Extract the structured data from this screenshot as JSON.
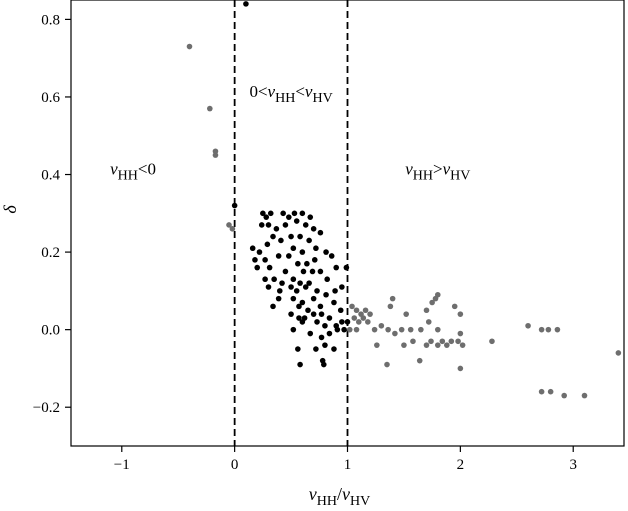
{
  "chart_data": {
    "type": "scatter",
    "title": "",
    "xlabel": "νHH/νHV",
    "ylabel": "δ",
    "xlim": [
      -1.45,
      3.45
    ],
    "ylim": [
      -0.3,
      0.85
    ],
    "xticks": [
      -1,
      0,
      1,
      2,
      3
    ],
    "xtick_labels": [
      "−1",
      "0",
      "1",
      "2",
      "3"
    ],
    "yticks": [
      -0.2,
      0.0,
      0.2,
      0.4,
      0.6,
      0.8
    ],
    "ytick_labels": [
      "−0.2",
      "0.0",
      "0.2",
      "0.4",
      "0.6",
      "0.8"
    ],
    "grid": false,
    "vlines": [
      0,
      1
    ],
    "annotations": [
      {
        "text": "νHH<0",
        "x": -0.9,
        "y": 0.4
      },
      {
        "text": "0<νHH<νHV",
        "x": 0.5,
        "y": 0.6
      },
      {
        "text": "νHH>νHV",
        "x": 1.8,
        "y": 0.4
      }
    ],
    "series": [
      {
        "color": "#000000",
        "points": [
          [
            0.1,
            0.84
          ],
          [
            0.0,
            0.32
          ],
          [
            0.25,
            0.3
          ],
          [
            0.28,
            0.29
          ],
          [
            0.32,
            0.3
          ],
          [
            0.43,
            0.3
          ],
          [
            0.48,
            0.29
          ],
          [
            0.53,
            0.3
          ],
          [
            0.6,
            0.3
          ],
          [
            0.67,
            0.29
          ],
          [
            0.24,
            0.27
          ],
          [
            0.3,
            0.27
          ],
          [
            0.37,
            0.26
          ],
          [
            0.45,
            0.27
          ],
          [
            0.55,
            0.28
          ],
          [
            0.63,
            0.27
          ],
          [
            0.7,
            0.26
          ],
          [
            0.76,
            0.25
          ],
          [
            0.16,
            0.21
          ],
          [
            0.22,
            0.2
          ],
          [
            0.34,
            0.24
          ],
          [
            0.41,
            0.23
          ],
          [
            0.5,
            0.24
          ],
          [
            0.58,
            0.24
          ],
          [
            0.66,
            0.23
          ],
          [
            0.72,
            0.21
          ],
          [
            0.29,
            0.22
          ],
          [
            0.52,
            0.21
          ],
          [
            0.6,
            0.2
          ],
          [
            0.81,
            0.2
          ],
          [
            0.18,
            0.18
          ],
          [
            0.27,
            0.18
          ],
          [
            0.39,
            0.19
          ],
          [
            0.48,
            0.19
          ],
          [
            0.56,
            0.17
          ],
          [
            0.64,
            0.17
          ],
          [
            0.71,
            0.18
          ],
          [
            0.86,
            0.19
          ],
          [
            0.2,
            0.16
          ],
          [
            0.31,
            0.16
          ],
          [
            0.45,
            0.15
          ],
          [
            0.61,
            0.15
          ],
          [
            0.69,
            0.15
          ],
          [
            0.76,
            0.15
          ],
          [
            0.9,
            0.16
          ],
          [
            0.99,
            0.16
          ],
          [
            0.27,
            0.13
          ],
          [
            0.35,
            0.13
          ],
          [
            0.42,
            0.12
          ],
          [
            0.52,
            0.13
          ],
          [
            0.58,
            0.12
          ],
          [
            0.66,
            0.12
          ],
          [
            0.82,
            0.13
          ],
          [
            0.3,
            0.11
          ],
          [
            0.4,
            0.1
          ],
          [
            0.5,
            0.11
          ],
          [
            0.55,
            0.1
          ],
          [
            0.63,
            0.11
          ],
          [
            0.73,
            0.1
          ],
          [
            0.81,
            0.09
          ],
          [
            0.89,
            0.1
          ],
          [
            0.95,
            0.11
          ],
          [
            0.39,
            0.08
          ],
          [
            0.52,
            0.08
          ],
          [
            0.6,
            0.07
          ],
          [
            0.7,
            0.08
          ],
          [
            0.88,
            0.07
          ],
          [
            0.34,
            0.06
          ],
          [
            0.57,
            0.06
          ],
          [
            0.65,
            0.05
          ],
          [
            0.76,
            0.06
          ],
          [
            0.94,
            0.05
          ],
          [
            0.5,
            0.04
          ],
          [
            0.57,
            0.03
          ],
          [
            0.62,
            0.03
          ],
          [
            0.7,
            0.04
          ],
          [
            0.77,
            0.04
          ],
          [
            0.84,
            0.03
          ],
          [
            0.6,
            0.02
          ],
          [
            0.73,
            0.02
          ],
          [
            0.8,
            0.01
          ],
          [
            0.9,
            0.01
          ],
          [
            0.95,
            0.02
          ],
          [
            1.0,
            0.02
          ],
          [
            0.52,
            0.0
          ],
          [
            0.67,
            -0.01
          ],
          [
            0.77,
            -0.02
          ],
          [
            0.84,
            -0.01
          ],
          [
            0.91,
            0.0
          ],
          [
            0.97,
            0.0
          ],
          [
            0.56,
            -0.05
          ],
          [
            0.72,
            -0.05
          ],
          [
            0.8,
            -0.04
          ],
          [
            0.88,
            -0.05
          ],
          [
            0.58,
            -0.09
          ],
          [
            0.78,
            -0.08
          ],
          [
            0.79,
            -0.09
          ]
        ]
      },
      {
        "color": "#6e6e6e",
        "points": [
          [
            -0.4,
            0.73
          ],
          [
            -0.22,
            0.57
          ],
          [
            -0.17,
            0.46
          ],
          [
            -0.17,
            0.45
          ],
          [
            -0.05,
            0.27
          ],
          [
            -0.02,
            0.26
          ],
          [
            1.04,
            0.06
          ],
          [
            1.08,
            0.05
          ],
          [
            1.12,
            0.04
          ],
          [
            1.16,
            0.05
          ],
          [
            1.2,
            0.04
          ],
          [
            1.06,
            0.03
          ],
          [
            1.1,
            0.02
          ],
          [
            1.14,
            0.03
          ],
          [
            1.02,
            0.0
          ],
          [
            1.08,
            0.0
          ],
          [
            1.18,
            0.02
          ],
          [
            1.24,
            0.0
          ],
          [
            1.3,
            0.01
          ],
          [
            1.38,
            0.06
          ],
          [
            1.4,
            0.08
          ],
          [
            1.36,
            0.0
          ],
          [
            1.42,
            -0.01
          ],
          [
            1.48,
            0.0
          ],
          [
            1.52,
            0.04
          ],
          [
            1.56,
            0.0
          ],
          [
            1.58,
            -0.03
          ],
          [
            1.65,
            0.0
          ],
          [
            1.7,
            0.05
          ],
          [
            1.72,
            0.02
          ],
          [
            1.75,
            0.07
          ],
          [
            1.78,
            0.08
          ],
          [
            1.8,
            0.09
          ],
          [
            1.8,
            0.0
          ],
          [
            1.84,
            -0.03
          ],
          [
            1.88,
            -0.04
          ],
          [
            1.92,
            -0.03
          ],
          [
            1.95,
            0.06
          ],
          [
            2.0,
            0.04
          ],
          [
            1.98,
            -0.03
          ],
          [
            2.02,
            -0.04
          ],
          [
            1.7,
            -0.04
          ],
          [
            1.74,
            -0.03
          ],
          [
            1.35,
            -0.09
          ],
          [
            1.5,
            -0.04
          ],
          [
            1.64,
            -0.08
          ],
          [
            1.8,
            -0.04
          ],
          [
            2.0,
            -0.1
          ],
          [
            2.0,
            -0.01
          ],
          [
            1.26,
            -0.04
          ],
          [
            2.28,
            -0.03
          ],
          [
            2.6,
            0.01
          ],
          [
            2.72,
            0.0
          ],
          [
            2.78,
            0.0
          ],
          [
            2.86,
            0.0
          ],
          [
            2.72,
            -0.16
          ],
          [
            2.8,
            -0.16
          ],
          [
            2.92,
            -0.17
          ],
          [
            3.1,
            -0.17
          ],
          [
            3.4,
            -0.06
          ]
        ]
      }
    ]
  }
}
